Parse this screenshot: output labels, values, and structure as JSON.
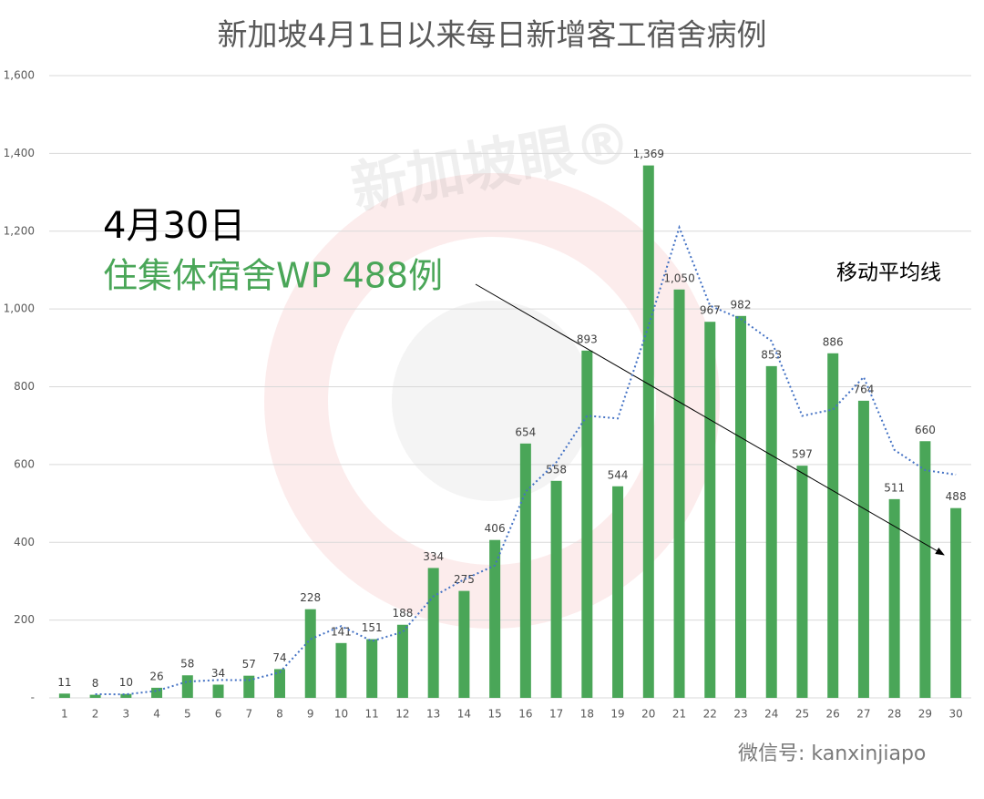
{
  "chart_data": {
    "type": "bar",
    "title": "新加坡4月1日以来每日新增客工宿舍病例",
    "categories": [
      "1",
      "2",
      "3",
      "4",
      "5",
      "6",
      "7",
      "8",
      "9",
      "10",
      "11",
      "12",
      "13",
      "14",
      "15",
      "16",
      "17",
      "18",
      "19",
      "20",
      "21",
      "22",
      "23",
      "24",
      "25",
      "26",
      "27",
      "28",
      "29",
      "30"
    ],
    "values": [
      11,
      8,
      10,
      26,
      58,
      34,
      57,
      74,
      228,
      141,
      151,
      188,
      334,
      275,
      406,
      654,
      558,
      893,
      544,
      1369,
      1050,
      967,
      982,
      853,
      597,
      886,
      764,
      511,
      660,
      488
    ],
    "value_labels": [
      "11",
      "8",
      "10",
      "26",
      "58",
      "34",
      "57",
      "74",
      "228",
      "141",
      "151",
      "188",
      "334",
      "275",
      "406",
      "654",
      "558",
      "893",
      "544",
      "1,369",
      "1,050",
      "967",
      "982",
      "853",
      "597",
      "886",
      "764",
      "511",
      "660",
      "488"
    ],
    "color": "#4aa658",
    "moving_average": {
      "label": "移动平均线",
      "color": "#4472c4",
      "values": [
        null,
        9.5,
        9,
        18,
        42,
        46,
        45.5,
        65.5,
        151,
        184.5,
        146,
        169.5,
        261,
        304.5,
        340.5,
        530,
        606,
        725.5,
        718.5,
        956.5,
        1209.5,
        1008.5,
        974.5,
        917.5,
        725,
        741.5,
        825,
        637.5,
        585.5,
        574
      ]
    },
    "ylim": [
      0,
      1600
    ],
    "yticks": [
      {
        "value": 0,
        "label": "-"
      },
      200,
      400,
      600,
      800,
      {
        "value": 1000,
        "label": "1,000"
      },
      {
        "value": 1200,
        "label": "1,200"
      },
      {
        "value": 1400,
        "label": "1,400"
      },
      {
        "value": 1600,
        "label": "1,600"
      }
    ],
    "grid": true,
    "annotations": [
      "4月30日",
      "住集体宿舍WP 488例"
    ],
    "watermarks": [
      "新加坡眼®",
      "微信号: kanxinjiapo"
    ]
  }
}
